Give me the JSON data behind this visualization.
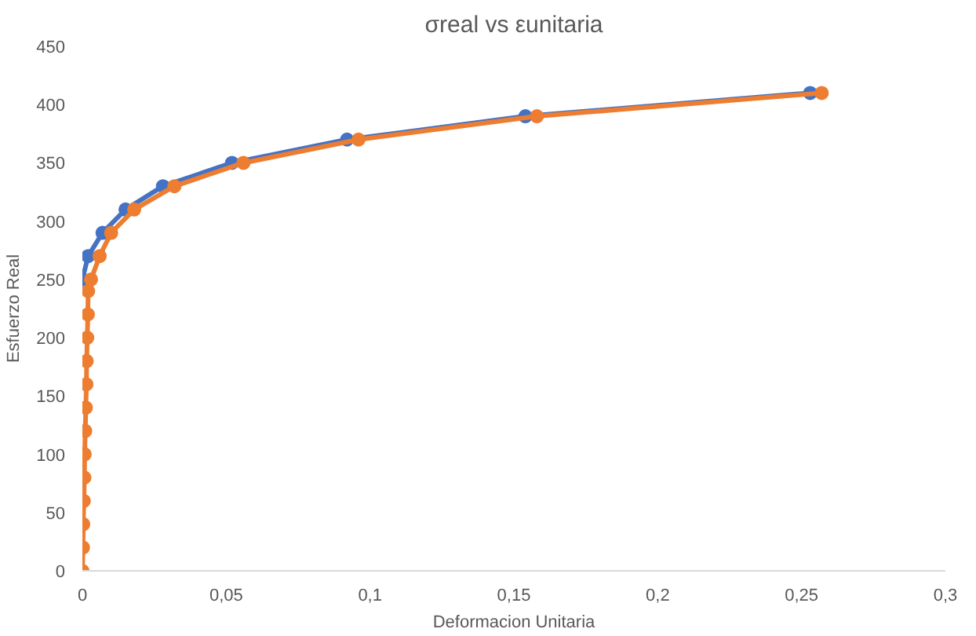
{
  "chart_data": {
    "type": "line",
    "title": "σreal vs εunitaria",
    "xlabel": "Deformacion Unitaria",
    "ylabel": "Esfuerzo Real",
    "xlim": [
      0,
      0.3
    ],
    "xticks": [
      {
        "value": 0,
        "label": "0"
      },
      {
        "value": 0.05,
        "label": "0,05"
      },
      {
        "value": 0.1,
        "label": "0,1"
      },
      {
        "value": 0.15,
        "label": "0,15"
      },
      {
        "value": 0.2,
        "label": "0,2"
      },
      {
        "value": 0.25,
        "label": "0,25"
      },
      {
        "value": 0.3,
        "label": "0,3"
      }
    ],
    "ylim": [
      0,
      450
    ],
    "yticks": [
      0,
      50,
      100,
      150,
      200,
      250,
      300,
      350,
      400,
      450
    ],
    "grid": false,
    "marker": "circle",
    "line_style": "solid",
    "series": [
      {
        "color": "#4472c4",
        "x": [
          0,
          0.002,
          0.007,
          0.015,
          0.028,
          0.052,
          0.092,
          0.154,
          0.253
        ],
        "values": [
          250,
          270,
          290,
          310,
          330,
          350,
          370,
          390,
          410
        ]
      },
      {
        "color": "#ed7d31",
        "x": [
          0,
          0.0002,
          0.0003,
          0.0005,
          0.0007,
          0.0008,
          0.001,
          0.0012,
          0.0014,
          0.0015,
          0.0017,
          0.0019,
          0.002,
          0.003,
          0.006,
          0.01,
          0.018,
          0.032,
          0.056,
          0.096,
          0.158,
          0.257
        ],
        "values": [
          0,
          20,
          40,
          60,
          80,
          100,
          120,
          140,
          160,
          180,
          200,
          220,
          240,
          250,
          270,
          290,
          310,
          330,
          350,
          370,
          390,
          410
        ]
      }
    ]
  }
}
